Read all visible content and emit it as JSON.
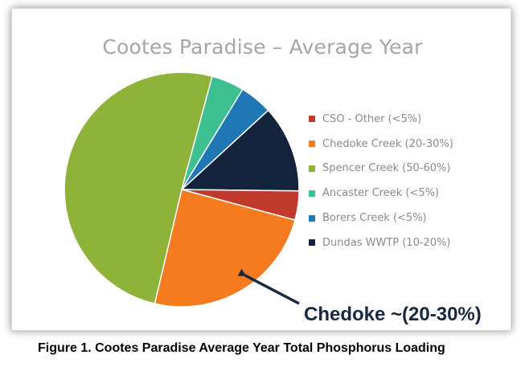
{
  "chart_data": {
    "type": "pie",
    "title": "Cootes Paradise – Average Year",
    "slices": [
      {
        "label": "CSO - Other (<5%)",
        "value": 4.0,
        "color": "#c0392b"
      },
      {
        "label": "Chedoke Creek (20-30%)",
        "value": 24.5,
        "color": "#f47b20"
      },
      {
        "label": "Spencer Creek (50-60%)",
        "value": 50.5,
        "color": "#8fb338"
      },
      {
        "label": "Ancaster Creek (<5%)",
        "value": 4.5,
        "color": "#3cbf91"
      },
      {
        "label": "Borers Creek (<5%)",
        "value": 4.5,
        "color": "#1f77b4"
      },
      {
        "label": "Dundas WWTP (10-20%)",
        "value": 12.0,
        "color": "#15223b"
      }
    ],
    "drawing_order": [
      "Dundas WWTP (10-20%)",
      "CSO - Other (<5%)",
      "Chedoke Creek (20-30%)",
      "Spencer Creek (50-60%)",
      "Ancaster Creek (<5%)",
      "Borers Creek (<5%)"
    ],
    "legend_position": "right",
    "annotation": "Chedoke ~(20-30%)"
  },
  "caption": "Figure 1.  Cootes Paradise Average Year Total Phosphorus Loading"
}
